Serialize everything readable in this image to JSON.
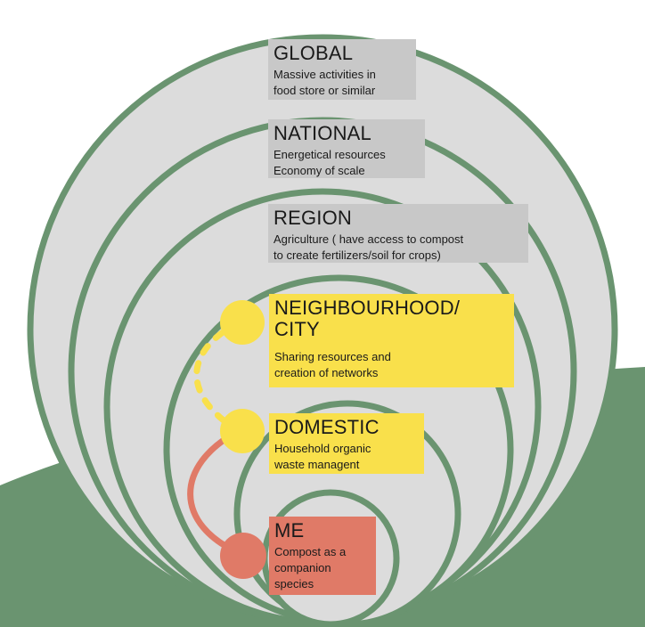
{
  "colors": {
    "ground": "#6a9470",
    "ring_stroke": "#6a9470",
    "ring_fill": "#dcdcdc",
    "grey_box": "#c8c8c8",
    "yellow": "#f9e04b",
    "salmon": "#e07a67"
  },
  "levels": {
    "global": {
      "title": "GLOBAL",
      "desc": "Massive activities in\nfood store or similar"
    },
    "national": {
      "title": "NATIONAL",
      "desc": "Energetical resources\nEconomy of scale"
    },
    "region": {
      "title": "REGION",
      "desc": "Agriculture ( have access to compost\nto create fertilizers/soil for crops)"
    },
    "neighbourhood": {
      "title": "NEIGHBOURHOOD/\nCITY",
      "desc": "Sharing resources and\ncreation of networks"
    },
    "domestic": {
      "title": "DOMESTIC",
      "desc": "Household organic\nwaste managent"
    },
    "me": {
      "title": "ME",
      "desc": "Compost as a\ncompanion\nspecies"
    }
  }
}
